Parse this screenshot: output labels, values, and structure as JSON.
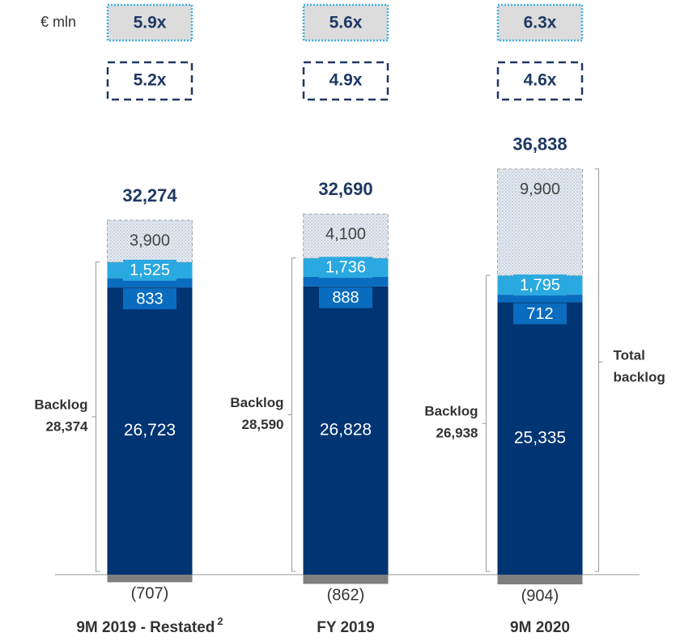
{
  "chart_data": {
    "type": "bar",
    "stacked": true,
    "unit_label": "€ mln",
    "categories": [
      "9M 2019 - Restated",
      "FY 2019",
      "9M 2020"
    ],
    "category_superscripts": [
      "2",
      null,
      null
    ],
    "multiples_top": [
      "5.9x",
      "5.6x",
      "6.3x"
    ],
    "multiples_bottom": [
      "5.2x",
      "4.9x",
      "4.6x"
    ],
    "series": [
      {
        "color": "#7f7f7f",
        "values": [
          -707,
          -862,
          -904
        ],
        "value_labels": [
          "(707)",
          "(862)",
          "(904)"
        ]
      },
      {
        "color": "#003473",
        "values": [
          26723,
          26828,
          25335
        ],
        "value_labels": [
          "26,723",
          "26,828",
          "25,335"
        ]
      },
      {
        "color": "#0a6cbf",
        "values": [
          833,
          888,
          712
        ],
        "value_labels": [
          "833",
          "888",
          "712"
        ]
      },
      {
        "color": "#2aa9e0",
        "values": [
          1525,
          1736,
          1795
        ],
        "value_labels": [
          "1,525",
          "1,736",
          "1,795"
        ]
      },
      {
        "color": "#d6dde6",
        "hatched": true,
        "values": [
          3900,
          4100,
          9900
        ],
        "value_labels": [
          "3,900",
          "4,100",
          "9,900"
        ]
      }
    ],
    "totals": [
      32274,
      32690,
      36838
    ],
    "totals_labels": [
      "32,274",
      "32,690",
      "36,838"
    ],
    "backlog": {
      "label": "Backlog",
      "values": [
        28374,
        28590,
        26938
      ],
      "value_labels": [
        "28,374",
        "28,590",
        "26,938"
      ]
    },
    "total_backlog_label": [
      "Total",
      "backlog"
    ]
  }
}
